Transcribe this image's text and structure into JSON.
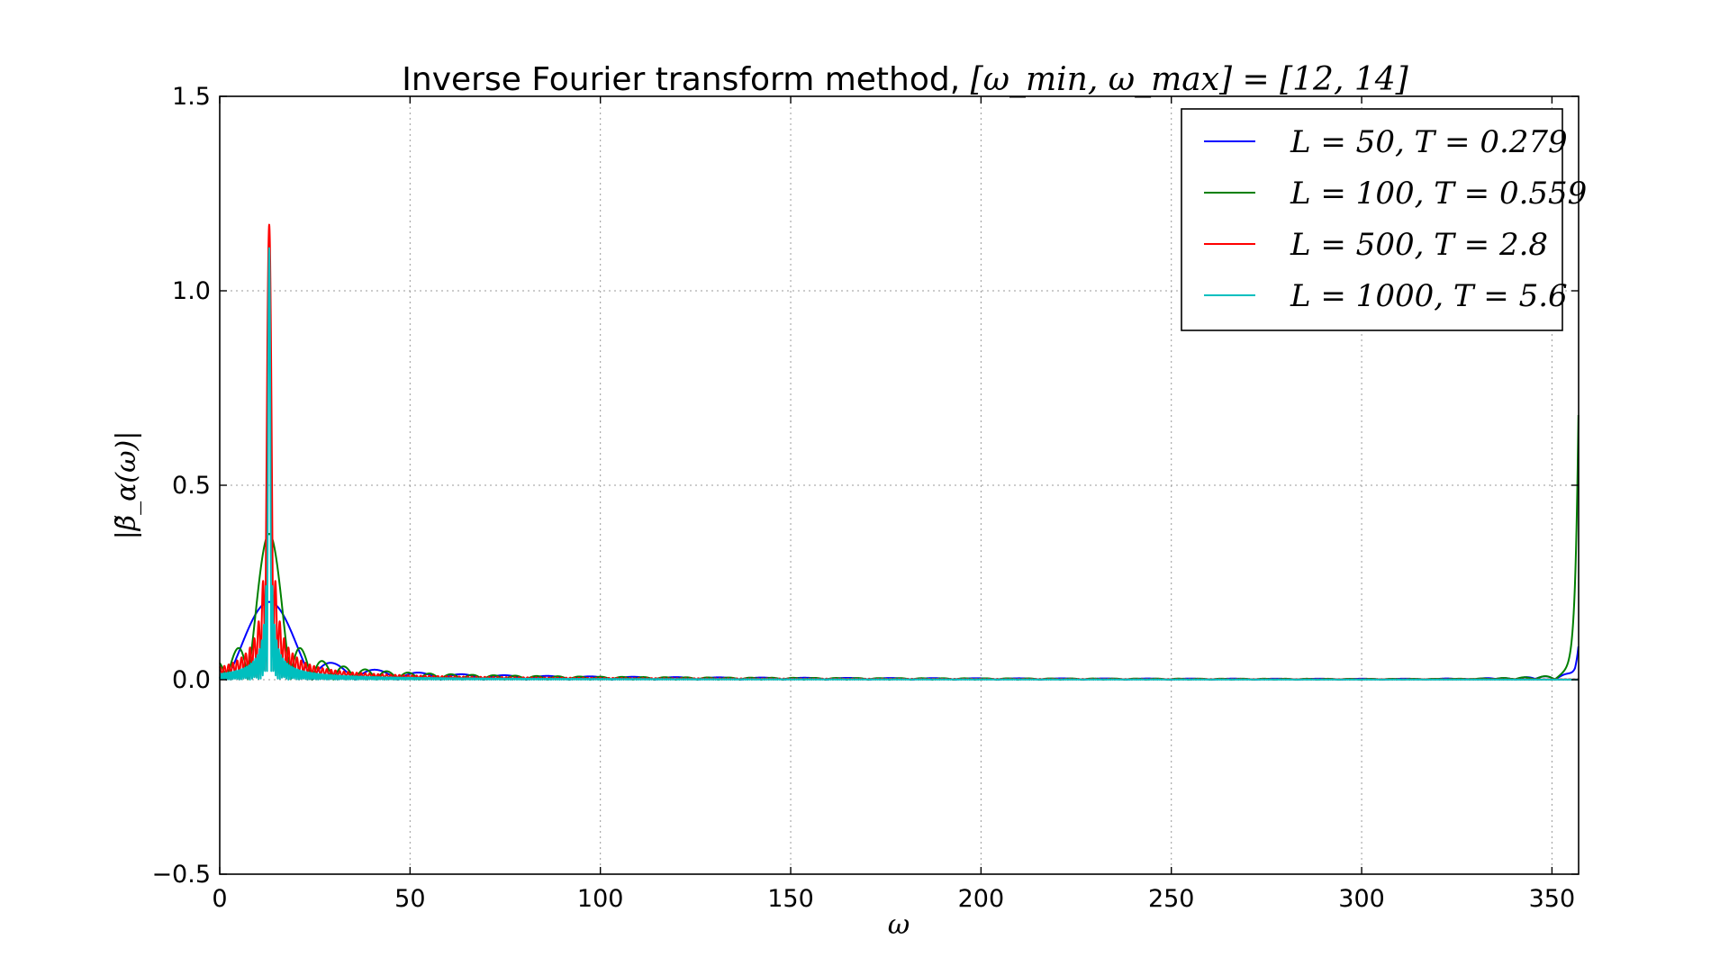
{
  "chart_data": {
    "type": "line",
    "title_prefix": "Inverse Fourier transform method, ",
    "title_math": "[ω_min, ω_max] = [12, 14]",
    "xlabel": "ω",
    "ylabel": "|β̃_α(ω)|",
    "xlim": [
      0,
      357
    ],
    "ylim": [
      -0.5,
      1.5
    ],
    "xticks": [
      0,
      50,
      100,
      150,
      200,
      250,
      300,
      350
    ],
    "yticks": [
      -0.5,
      0.0,
      0.5,
      1.0,
      1.5
    ],
    "ytick_labels": [
      "−0.5",
      "0.0",
      "0.5",
      "1.0",
      "1.5"
    ],
    "grid": true,
    "legend_position": "top-right",
    "series": [
      {
        "name": "L = 50, T = 0.279",
        "color": "#0000ff",
        "T": 0.279,
        "peak": 0.2,
        "center": 13.0,
        "end_value": 0.08
      },
      {
        "name": "L = 100, T = 0.559",
        "color": "#008000",
        "T": 0.559,
        "peak": 0.375,
        "center": 13.0,
        "end_value": 0.71
      },
      {
        "name": "L = 500, T = 2.8",
        "color": "#ff0000",
        "T": 2.8,
        "peak": 1.17,
        "center": 13.0,
        "end_value": 0.0
      },
      {
        "name": "L = 1000, T = 5.6",
        "color": "#00bfbf",
        "T": 5.6,
        "peak": 1.11,
        "center": 13.0,
        "end_value": 0.0
      }
    ]
  }
}
